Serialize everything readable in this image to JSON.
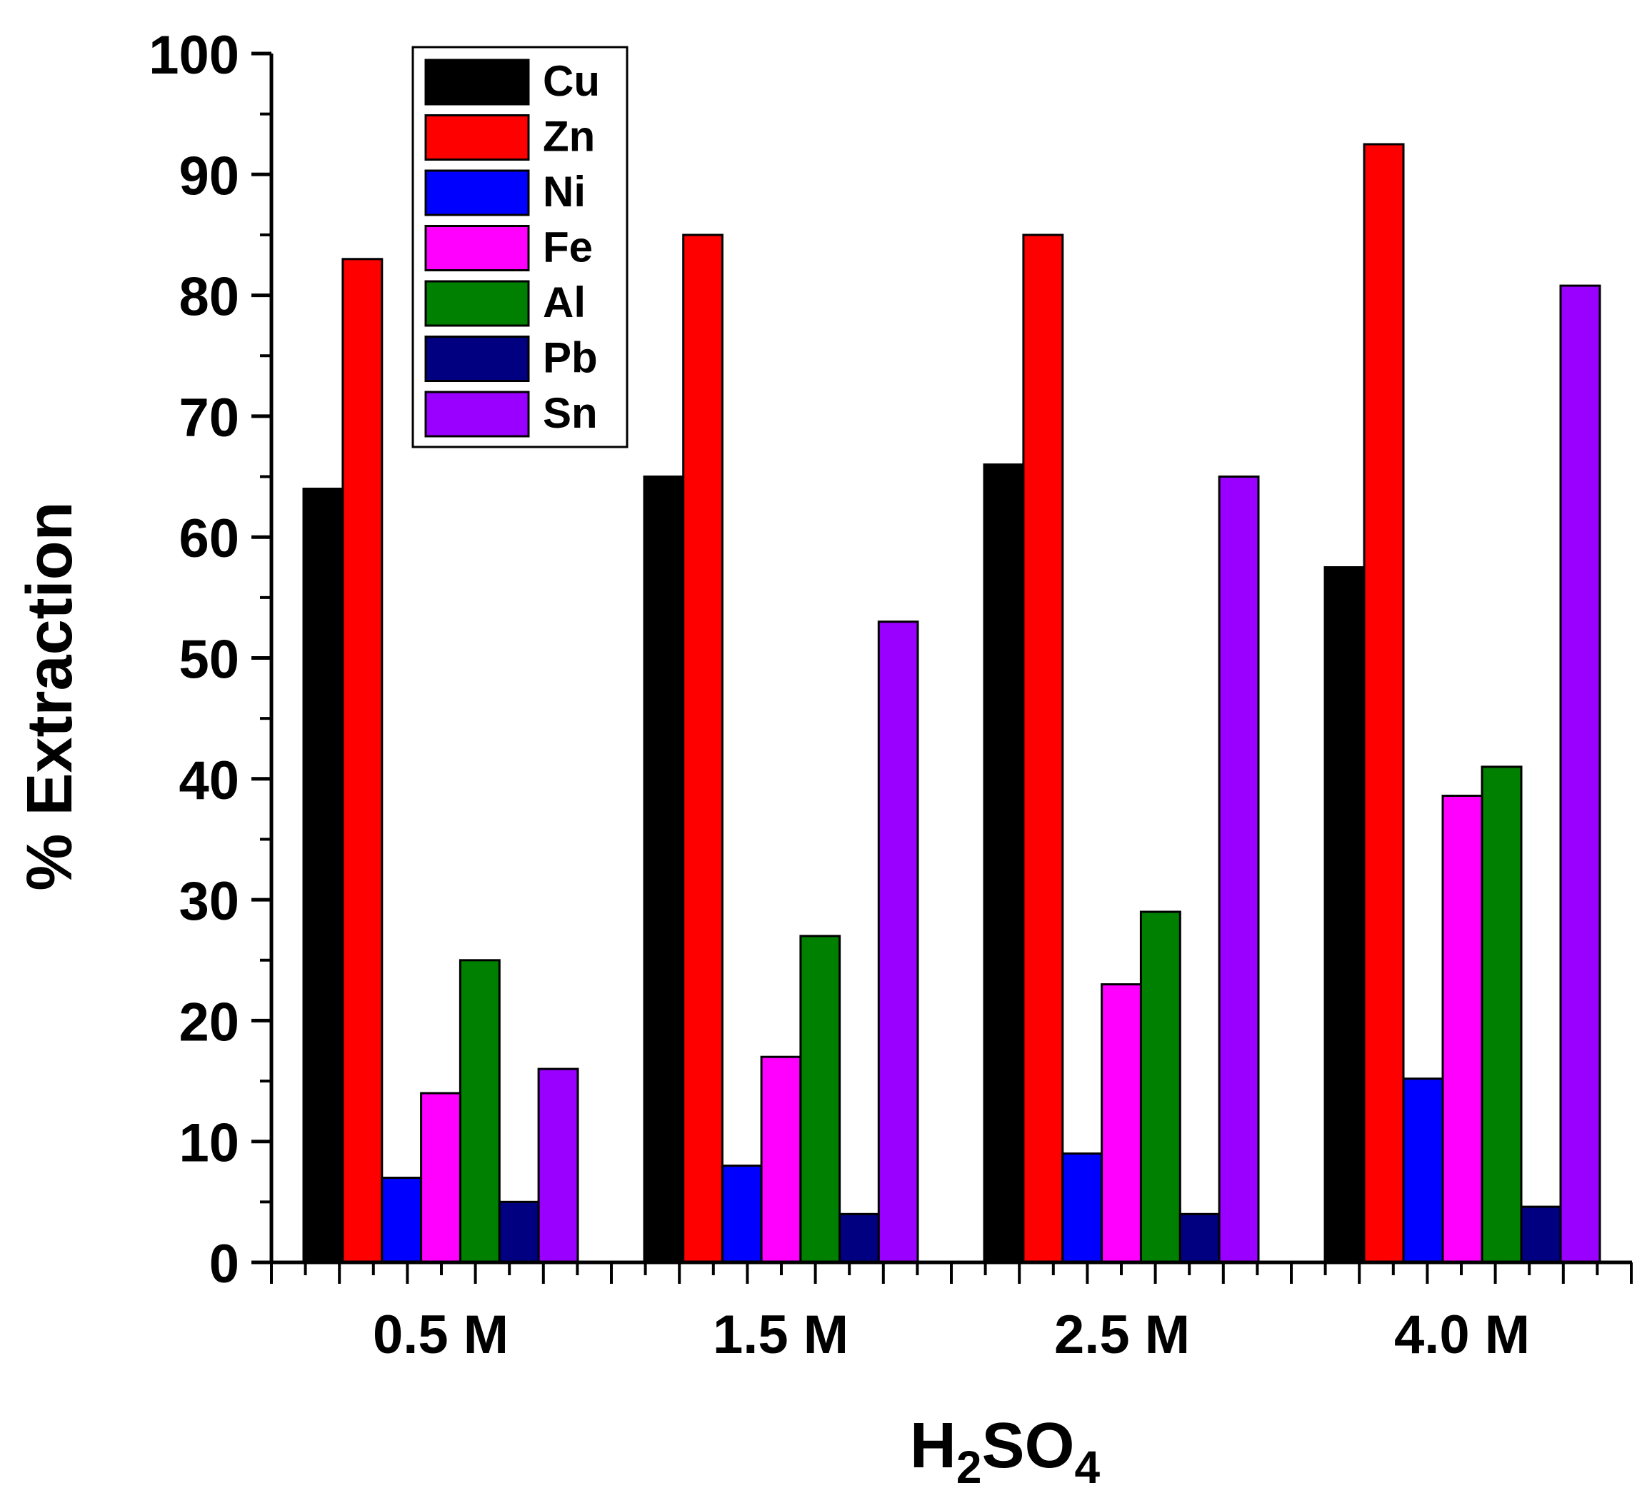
{
  "chart_data": {
    "type": "bar",
    "title": "",
    "xlabel": {
      "base": "H",
      "sub1": "2",
      "mid": "SO",
      "sub2": "4"
    },
    "ylabel": "% Extraction",
    "ylim": [
      0,
      100
    ],
    "yticks": [
      "0",
      "10",
      "20",
      "30",
      "40",
      "50",
      "60",
      "70",
      "80",
      "90",
      "100"
    ],
    "categories": [
      "0.5 M",
      "1.5 M",
      "2.5 M",
      "4.0 M"
    ],
    "legend_position": "top-left",
    "series": [
      {
        "name": "Cu",
        "color": "#000000",
        "values": [
          64,
          65,
          66,
          57.5
        ]
      },
      {
        "name": "Zn",
        "color": "#ff0000",
        "values": [
          83,
          85,
          85,
          92.5
        ]
      },
      {
        "name": "Ni",
        "color": "#0000ff",
        "values": [
          7,
          8,
          9,
          15.2
        ]
      },
      {
        "name": "Fe",
        "color": "#ff00ff",
        "values": [
          14,
          17,
          23,
          38.6
        ]
      },
      {
        "name": "Al",
        "color": "#008000",
        "values": [
          25,
          27,
          29,
          41
        ]
      },
      {
        "name": "Pb",
        "color": "#000080",
        "values": [
          5,
          4,
          4,
          4.6
        ]
      },
      {
        "name": "Sn",
        "color": "#9900ff",
        "values": [
          16,
          53,
          65,
          80.8
        ]
      }
    ]
  }
}
